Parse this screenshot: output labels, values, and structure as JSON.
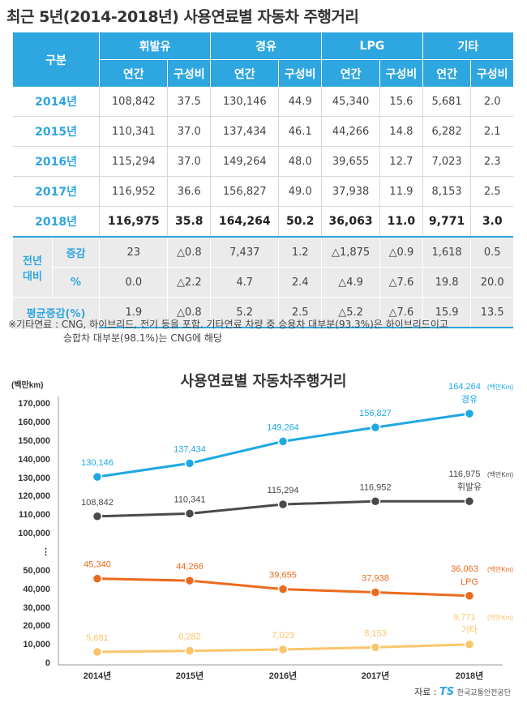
{
  "title": "최근 5년(2014-2018년) 사용연료별 자동차 주행거리",
  "table": {
    "header_group": "구분",
    "fuels": [
      "휘발유",
      "경유",
      "LPG",
      "기타"
    ],
    "sub": [
      "연간",
      "구성비"
    ],
    "rows": [
      {
        "year": "2014년",
        "vals": [
          "108,842",
          "37.5",
          "130,146",
          "44.9",
          "45,340",
          "15.6",
          "5,681",
          "2.0"
        ]
      },
      {
        "year": "2015년",
        "vals": [
          "110,341",
          "37.0",
          "137,434",
          "46.1",
          "44,266",
          "14.8",
          "6,282",
          "2.1"
        ]
      },
      {
        "year": "2016년",
        "vals": [
          "115,294",
          "37.0",
          "149,264",
          "48.0",
          "39,655",
          "12.7",
          "7,023",
          "2.3"
        ]
      },
      {
        "year": "2017년",
        "vals": [
          "116,952",
          "36.6",
          "156,827",
          "49.0",
          "37,938",
          "11.9",
          "8,153",
          "2.5"
        ]
      },
      {
        "year": "2018년",
        "vals": [
          "116,975",
          "35.8",
          "164,264",
          "50.2",
          "36,063",
          "11.0",
          "9,771",
          "3.0"
        ]
      }
    ],
    "prev_label": "전년\n대비",
    "prev_rows": [
      {
        "label": "증감",
        "vals": [
          "23",
          "△0.8",
          "7,437",
          "1.2",
          "△1,875",
          "△0.9",
          "1,618",
          "0.5"
        ]
      },
      {
        "label": "%",
        "vals": [
          "0.0",
          "△2.2",
          "4.7",
          "2.4",
          "△4.9",
          "△7.6",
          "19.8",
          "20.0"
        ]
      }
    ],
    "avg_row": {
      "label": "평균증감(%)",
      "vals": [
        "1.9",
        "△0.8",
        "5.2",
        "2.5",
        "△5.2",
        "△7.6",
        "15.9",
        "13.5"
      ]
    }
  },
  "note": {
    "line1": "※기타연료 : CNG, 하이브리드, 전기 등을 포함. 기타연료 차량 중 승용차 대부분(93.3%)은 하이브리드이고",
    "line2": "승합차 대부분(98.1%)는 CNG에 해당"
  },
  "source": {
    "label": "자료 :",
    "logo": "TS",
    "org": "한국교통안전공단"
  },
  "colors": {
    "diesel": "#1ea8e4",
    "gasoline": "#4a4a4a",
    "lpg": "#ec6a1c",
    "other": "#f9c56a",
    "header": "#2ea6e0"
  },
  "chart_data": {
    "type": "line",
    "title": "사용연료별 자동차주행거리",
    "ylabel": "(백만km)",
    "categories": [
      "2014년",
      "2015년",
      "2016년",
      "2017년",
      "2018년"
    ],
    "y_ticks": [
      "170,000",
      "160,000",
      "150,000",
      "140,000",
      "130,000",
      "120,000",
      "110,000",
      "100,000",
      "⋮",
      "50,000",
      "40,000",
      "30,000",
      "20,000",
      "10,000",
      "0"
    ],
    "axis_break": {
      "lower_max": 50000,
      "upper_min": 100000
    },
    "ylim": [
      0,
      170000
    ],
    "series": [
      {
        "name": "경유",
        "key": "diesel",
        "values": [
          130146,
          137434,
          149264,
          156827,
          164264
        ],
        "labels": [
          "130,146",
          "137,434",
          "149,264",
          "156,827",
          "164,264"
        ],
        "end_unit": "(백만Km)"
      },
      {
        "name": "휘발유",
        "key": "gasoline",
        "values": [
          108842,
          110341,
          115294,
          116952,
          116975
        ],
        "labels": [
          "108,842",
          "110,341",
          "115,294",
          "116,952",
          "116,975"
        ],
        "end_unit": "(백만Km)"
      },
      {
        "name": "LPG",
        "key": "lpg",
        "values": [
          45340,
          44266,
          39655,
          37938,
          36063
        ],
        "labels": [
          "45,340",
          "44,266",
          "39,655",
          "37,938",
          "36,063"
        ],
        "end_unit": "(백만Km)"
      },
      {
        "name": "기타",
        "key": "other",
        "values": [
          5681,
          6282,
          7023,
          8153,
          9771
        ],
        "labels": [
          "5,681",
          "6,282",
          "7,023",
          "8,153",
          "9,771"
        ],
        "end_unit": "(백만Km)"
      }
    ]
  }
}
